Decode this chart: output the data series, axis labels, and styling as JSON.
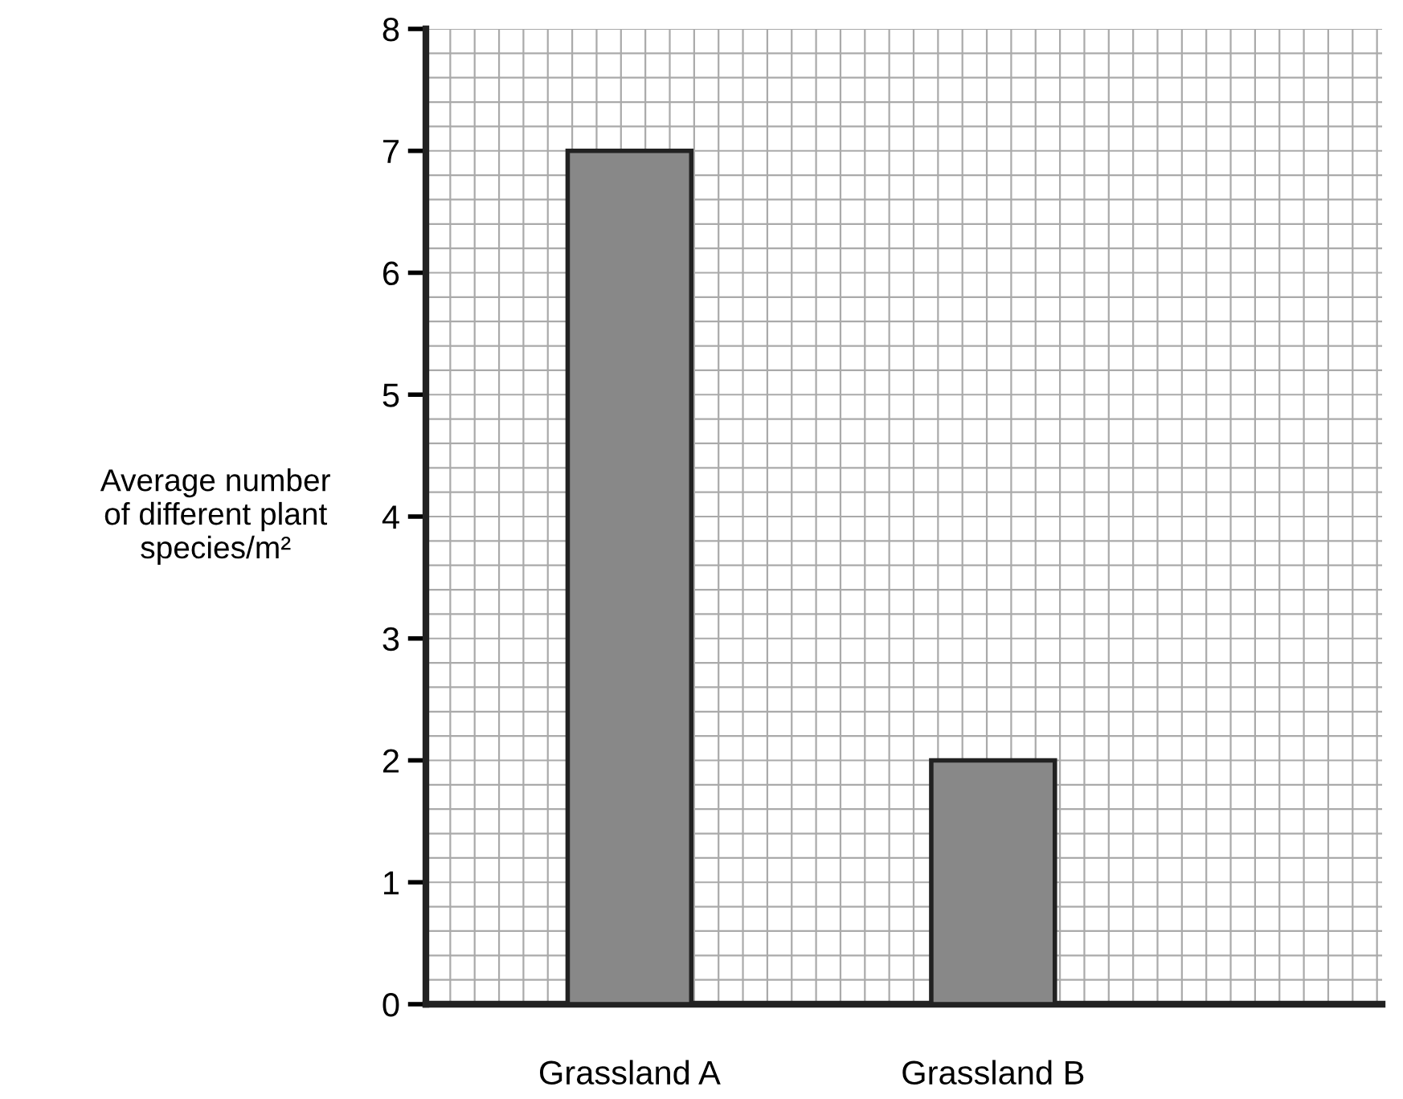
{
  "chart_data": {
    "type": "bar",
    "ylabel": "Average number\nof different plant\nspecies/m²",
    "categories": [
      "Grassland A",
      "Grassland B"
    ],
    "values": [
      7,
      2
    ],
    "color": "#888888",
    "ylim": [
      0,
      8
    ],
    "yticks": [
      0,
      1,
      2,
      3,
      4,
      5,
      6,
      7,
      8
    ],
    "grid": true
  }
}
